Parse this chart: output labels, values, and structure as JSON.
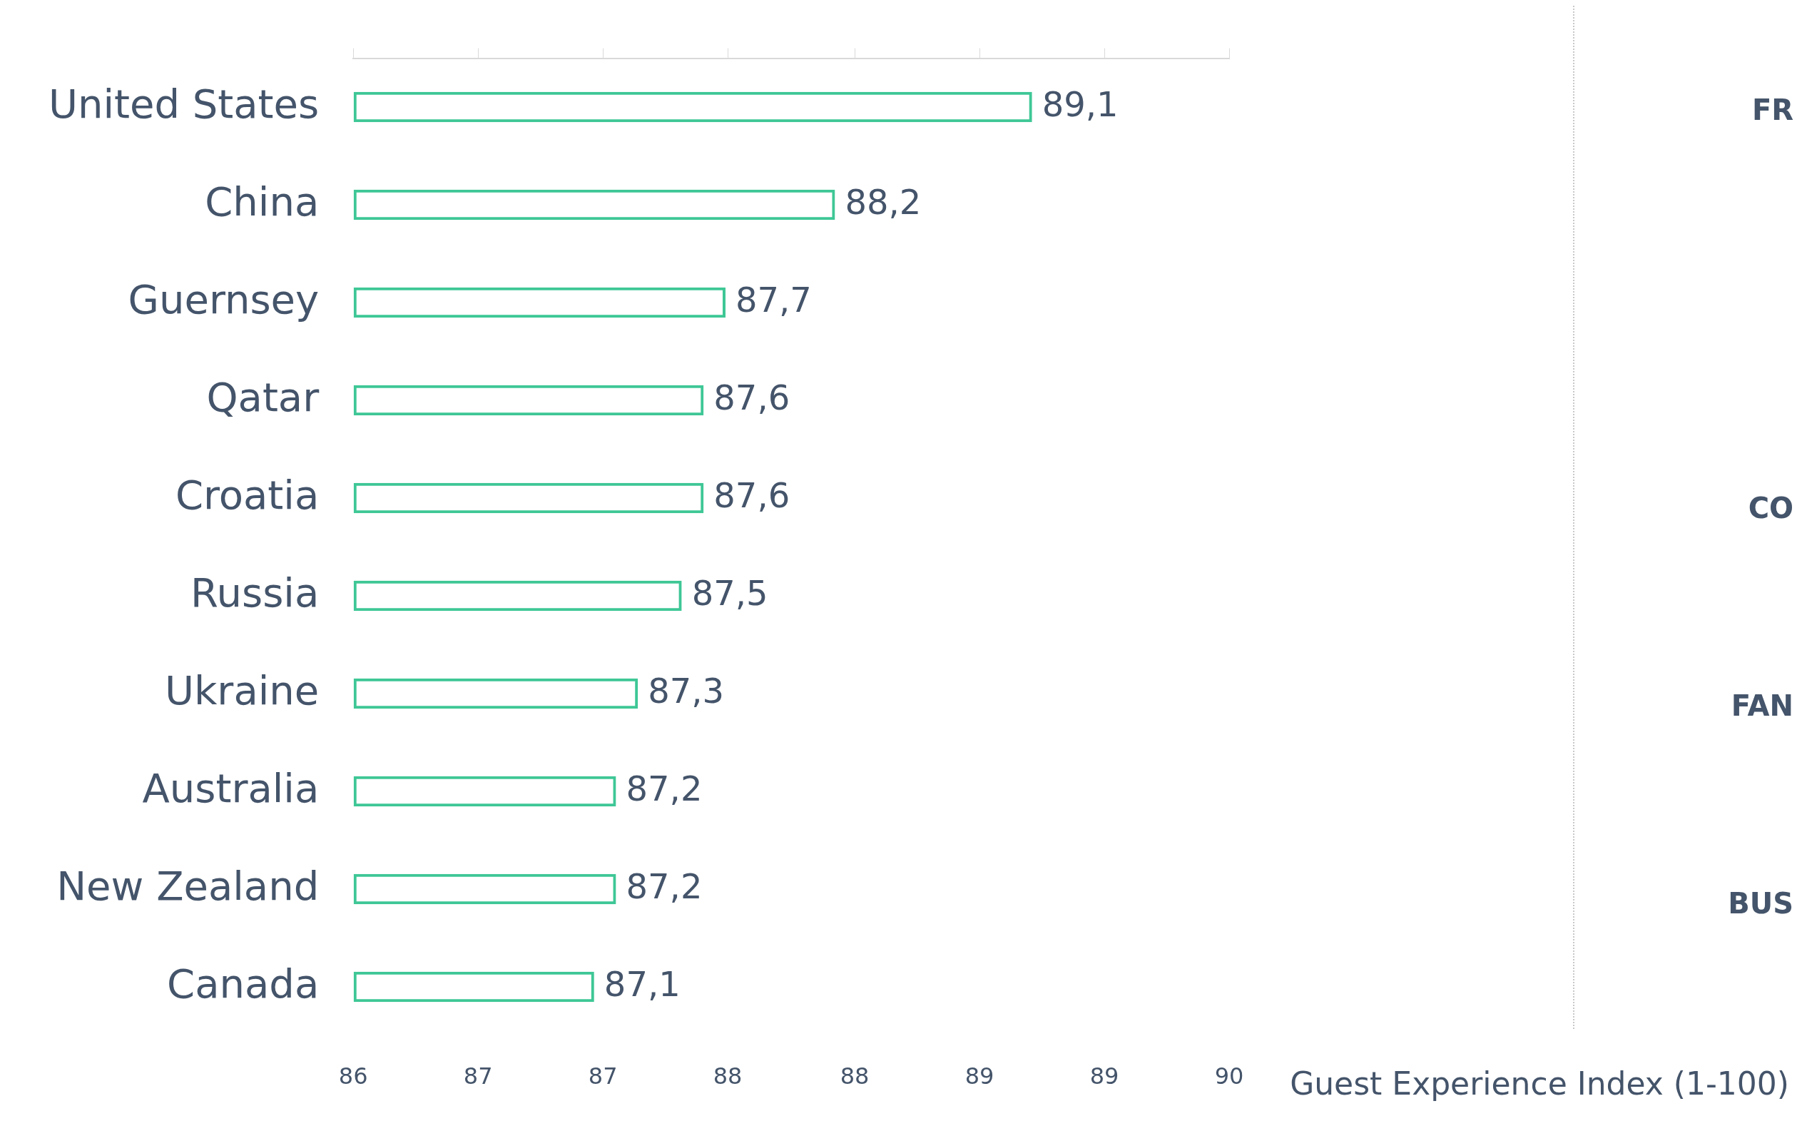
{
  "chart_data": {
    "type": "bar",
    "orientation": "horizontal",
    "categories": [
      "United States",
      "China",
      "Guernsey",
      "Qatar",
      "Croatia",
      "Russia",
      "Ukraine",
      "Australia",
      "New Zealand",
      "Canada"
    ],
    "values": [
      89.1,
      88.2,
      87.7,
      87.6,
      87.6,
      87.5,
      87.3,
      87.2,
      87.2,
      87.1
    ],
    "value_labels": [
      "89,1",
      "88,2",
      "87,7",
      "87,6",
      "87,6",
      "87,5",
      "87,3",
      "87,2",
      "87,2",
      "87,1"
    ],
    "color": "#3ec796",
    "xlim": [
      86,
      90
    ],
    "xticks": [
      86,
      {
        "value": 86.57,
        "label": "87"
      },
      {
        "value": 87.14,
        "label": "87"
      },
      {
        "value": 87.71,
        "label": "88"
      },
      {
        "value": 88.29,
        "label": "88"
      },
      {
        "value": 88.86,
        "label": "89"
      },
      {
        "value": 89.43,
        "label": "89"
      },
      90
    ],
    "xlabel": "Guest Experience Index (1-100)",
    "annotations": [
      "FR",
      "CO",
      "FAN",
      "BUS"
    ],
    "legend": false
  }
}
